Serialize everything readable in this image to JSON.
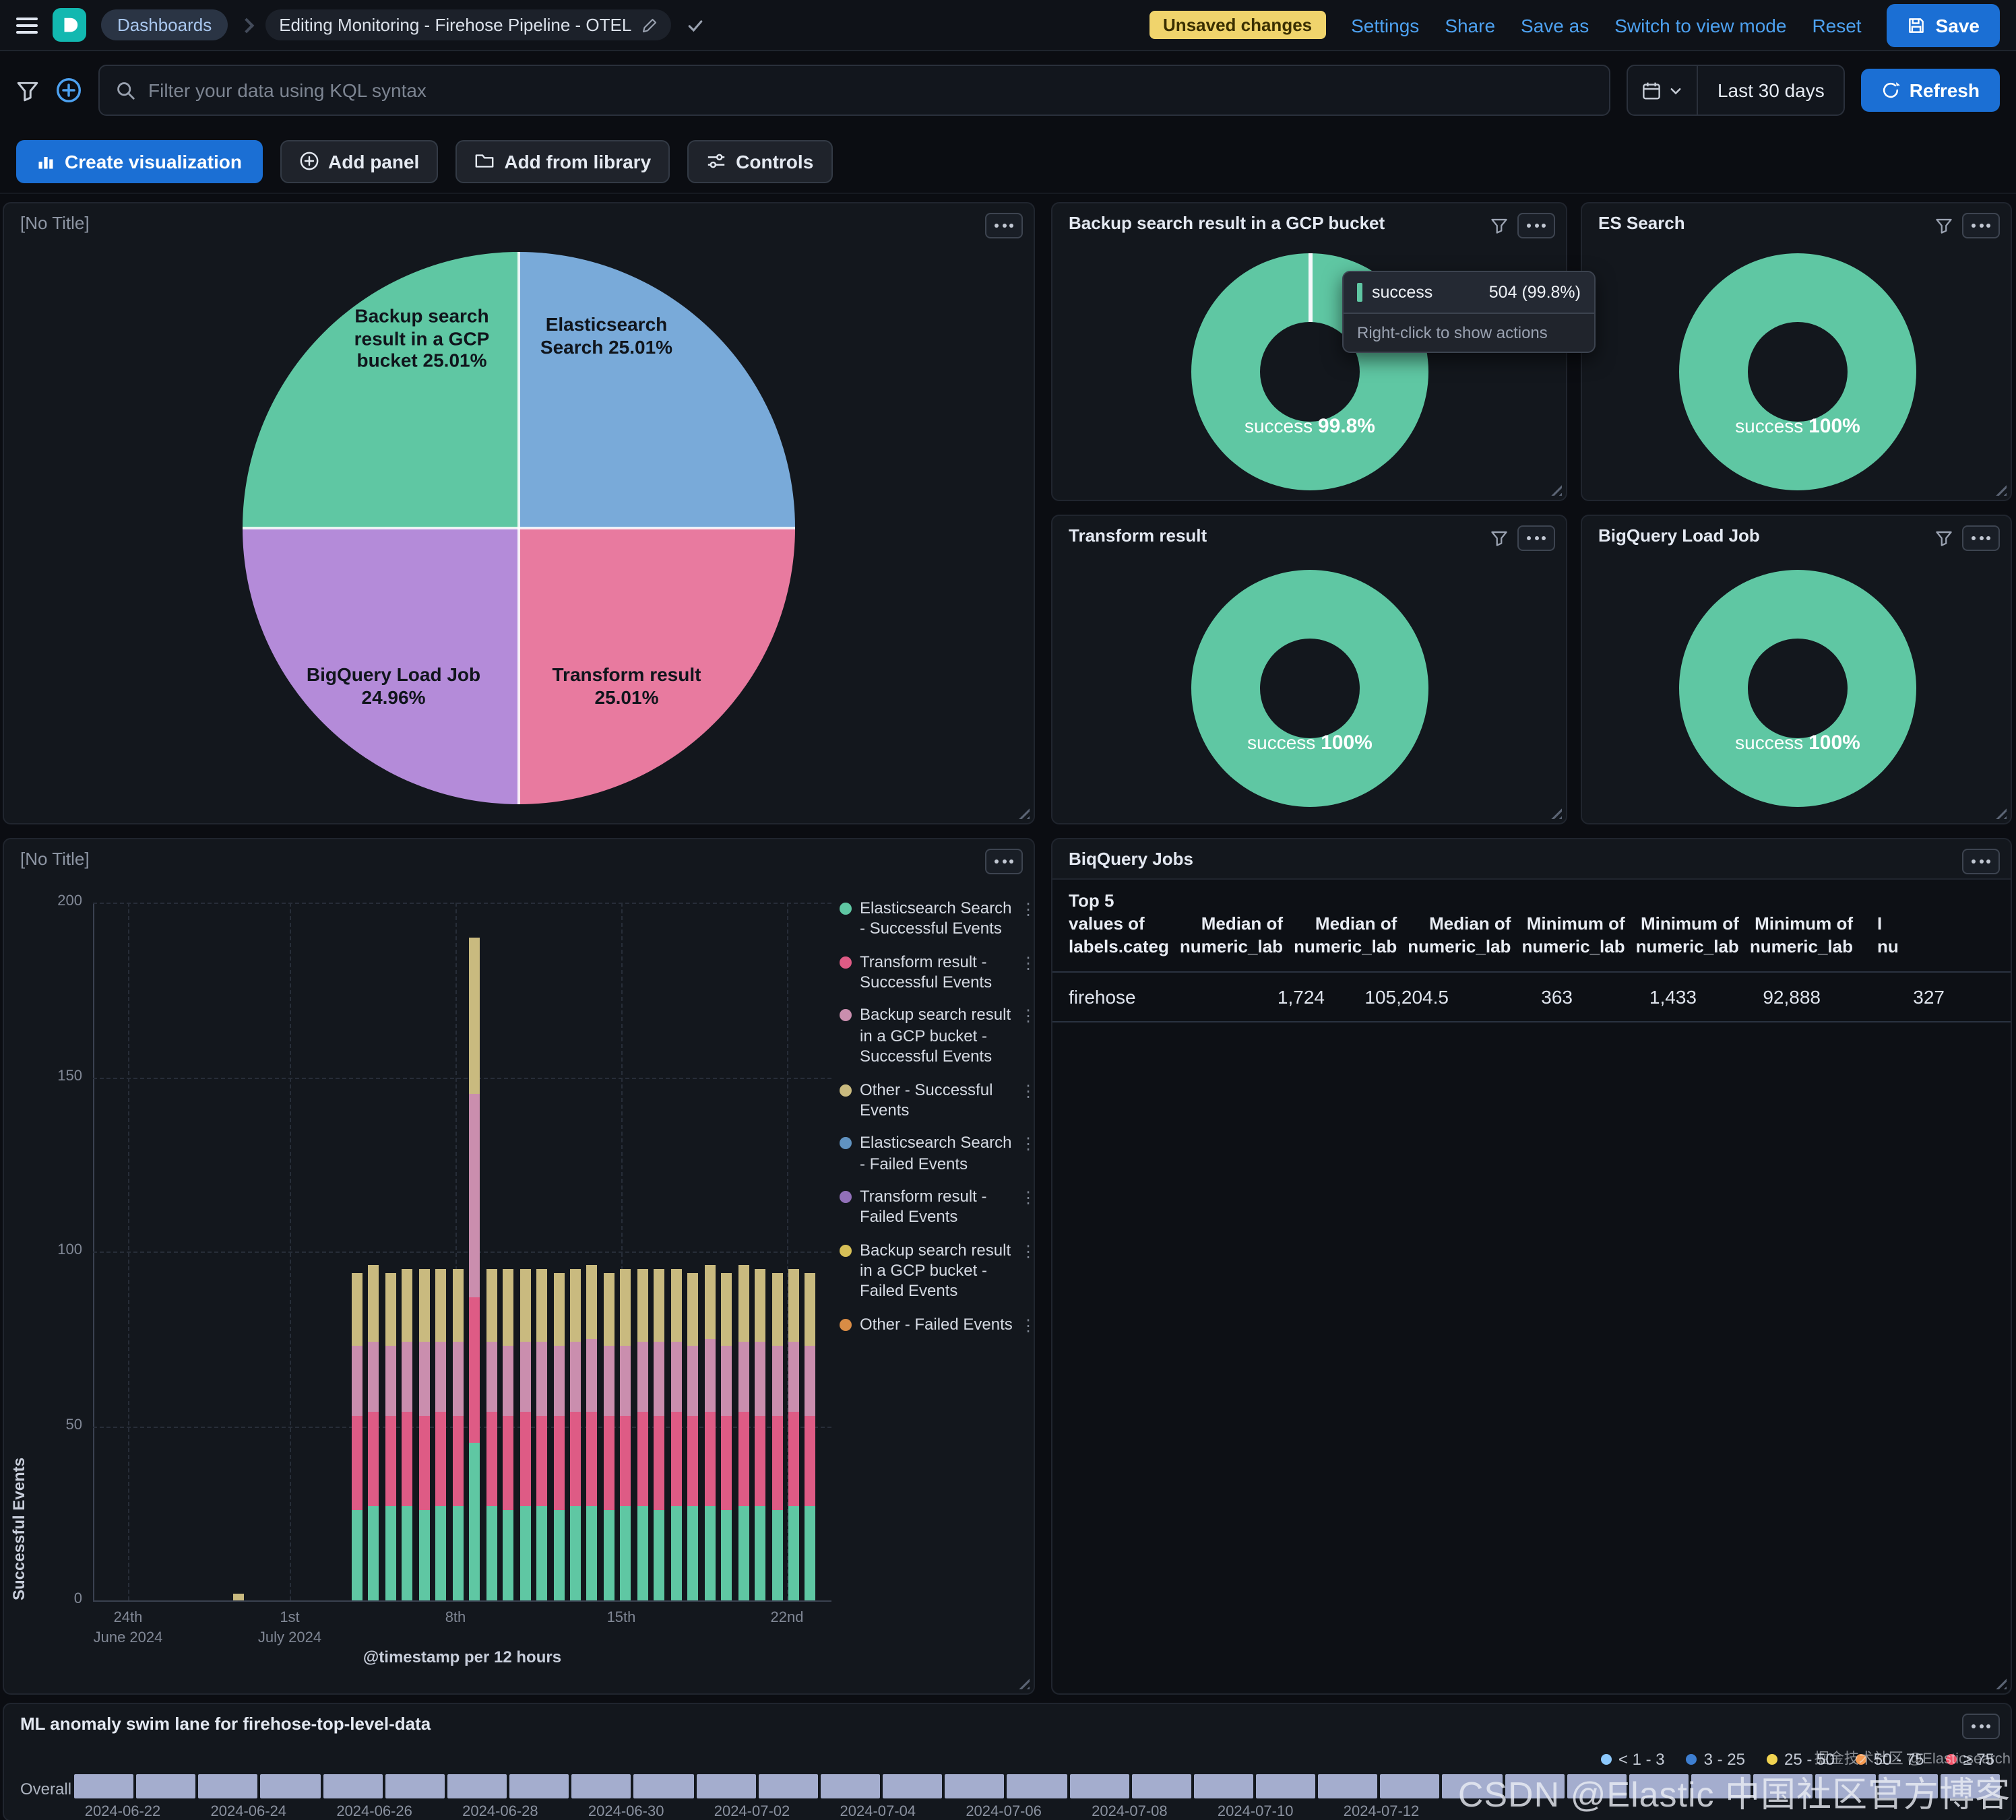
{
  "colors": {
    "accent": "#4DA1F0",
    "primary_button": "#1B6FD4",
    "badge": "#F0D46C",
    "panel_bg": "#13171D",
    "success": "#5FC7A3"
  },
  "header": {
    "breadcrumbs": [
      "Dashboards",
      "Editing Monitoring - Firehose Pipeline - OTEL"
    ],
    "unsaved_badge": "Unsaved changes",
    "links": [
      "Settings",
      "Share",
      "Save as",
      "Switch to view mode",
      "Reset"
    ],
    "save": "Save"
  },
  "filter_bar": {
    "kql_placeholder": "Filter your data using KQL syntax",
    "time_range": "Last 30 days",
    "refresh": "Refresh"
  },
  "edit_bar": {
    "create_visualization": "Create visualization",
    "add_panel": "Add panel",
    "add_from_library": "Add from library",
    "controls": "Controls"
  },
  "watermarks": {
    "small": "掘金技术社区 @Elasticsearch",
    "large": "CSDN @Elastic 中国社区官方博客"
  },
  "chart_data": [
    {
      "id": "status-pie",
      "type": "pie",
      "title": "[No Title]",
      "slices": [
        {
          "label": "Elasticsearch Search",
          "value": 25.01,
          "pct": "25.01%",
          "color": "#79AAD9"
        },
        {
          "label": "Transform result",
          "value": 25.01,
          "pct": "25.01%",
          "color": "#E87A9F"
        },
        {
          "label": "BigQuery Load Job",
          "value": 24.96,
          "pct": "24.96%",
          "color": "#B48BD9"
        },
        {
          "label": "Backup search result in a GCP bucket",
          "value": 25.01,
          "pct": "25.01%",
          "color": "#5FC7A3"
        }
      ]
    },
    {
      "id": "backup-donut",
      "type": "pie",
      "donut": true,
      "title": "Backup search result in a GCP bucket",
      "center": {
        "label": "success",
        "pct": "99.8%"
      },
      "slices": [
        {
          "label": "success",
          "value": 99.8,
          "color": "#5FC7A3"
        }
      ],
      "tooltip": {
        "label": "success",
        "value": "504 (99.8%)",
        "hint": "Right-click to show actions"
      }
    },
    {
      "id": "es-donut",
      "type": "pie",
      "donut": true,
      "title": "ES Search",
      "center": {
        "label": "success",
        "pct": "100%"
      },
      "slices": [
        {
          "label": "success",
          "value": 100,
          "color": "#5FC7A3"
        }
      ]
    },
    {
      "id": "transform-donut",
      "type": "pie",
      "donut": true,
      "title": "Transform result",
      "center": {
        "label": "success",
        "pct": "100%"
      },
      "slices": [
        {
          "label": "success",
          "value": 100,
          "color": "#5FC7A3"
        }
      ]
    },
    {
      "id": "bigquery-donut",
      "type": "pie",
      "donut": true,
      "title": "BigQuery Load Job",
      "center": {
        "label": "success",
        "pct": "100%"
      },
      "slices": [
        {
          "label": "success",
          "value": 100,
          "color": "#5FC7A3"
        }
      ]
    },
    {
      "id": "events-bar",
      "type": "bar",
      "stacked": true,
      "title": "[No Title]",
      "ylabel": "Successful Events",
      "xlabel": "@timestamp per 12 hours",
      "ylim": [
        0,
        200
      ],
      "yticks": [
        0,
        50,
        100,
        150,
        200
      ],
      "xticks": [
        {
          "x": 92,
          "label": "24th",
          "sub": "June 2024"
        },
        {
          "x": 212,
          "label": "1st",
          "sub": "July 2024"
        },
        {
          "x": 335,
          "label": "8th"
        },
        {
          "x": 458,
          "label": "15th"
        },
        {
          "x": 581,
          "label": "22nd"
        }
      ],
      "series": [
        {
          "name": "Elasticsearch Search - Successful Events",
          "color": "#5FC7A3"
        },
        {
          "name": "Transform result - Successful Events",
          "color": "#DE5B85"
        },
        {
          "name": "Backup search result in a GCP bucket - Successful Events",
          "color": "#CA8EAE"
        },
        {
          "name": "Other - Successful Events",
          "color": "#C9BA7F"
        },
        {
          "name": "Elasticsearch Search - Failed Events",
          "color": "#6092C0"
        },
        {
          "name": "Transform result - Failed Events",
          "color": "#9170B8"
        },
        {
          "name": "Backup search result in a GCP bucket - Failed Events",
          "color": "#D6BF57"
        },
        {
          "name": "Other - Failed Events",
          "color": "#D98C45"
        }
      ],
      "bars": [
        {
          "x": 170,
          "v": [
            0,
            0,
            0,
            2
          ]
        },
        {
          "x": 258,
          "v": [
            26,
            27,
            20,
            21
          ]
        },
        {
          "x": 270,
          "v": [
            27,
            27,
            20,
            22
          ]
        },
        {
          "x": 283,
          "v": [
            27,
            26,
            20,
            21
          ]
        },
        {
          "x": 295,
          "v": [
            27,
            27,
            20,
            21
          ]
        },
        {
          "x": 308,
          "v": [
            26,
            27,
            21,
            21
          ]
        },
        {
          "x": 320,
          "v": [
            27,
            27,
            20,
            21
          ]
        },
        {
          "x": 333,
          "v": [
            27,
            26,
            21,
            21
          ]
        },
        {
          "x": 345,
          "v": [
            45,
            42,
            58,
            45
          ]
        },
        {
          "x": 358,
          "v": [
            27,
            27,
            20,
            21
          ]
        },
        {
          "x": 370,
          "v": [
            26,
            27,
            20,
            22
          ]
        },
        {
          "x": 383,
          "v": [
            27,
            27,
            20,
            21
          ]
        },
        {
          "x": 395,
          "v": [
            27,
            26,
            21,
            21
          ]
        },
        {
          "x": 408,
          "v": [
            26,
            27,
            20,
            21
          ]
        },
        {
          "x": 420,
          "v": [
            27,
            27,
            20,
            21
          ]
        },
        {
          "x": 432,
          "v": [
            27,
            27,
            21,
            21
          ]
        },
        {
          "x": 445,
          "v": [
            26,
            27,
            20,
            21
          ]
        },
        {
          "x": 457,
          "v": [
            27,
            26,
            20,
            22
          ]
        },
        {
          "x": 470,
          "v": [
            27,
            27,
            20,
            21
          ]
        },
        {
          "x": 482,
          "v": [
            26,
            27,
            21,
            21
          ]
        },
        {
          "x": 495,
          "v": [
            27,
            27,
            20,
            21
          ]
        },
        {
          "x": 507,
          "v": [
            27,
            26,
            20,
            21
          ]
        },
        {
          "x": 520,
          "v": [
            27,
            27,
            21,
            21
          ]
        },
        {
          "x": 532,
          "v": [
            26,
            27,
            20,
            21
          ]
        },
        {
          "x": 545,
          "v": [
            27,
            27,
            20,
            22
          ]
        },
        {
          "x": 557,
          "v": [
            27,
            26,
            21,
            21
          ]
        },
        {
          "x": 570,
          "v": [
            26,
            27,
            20,
            21
          ]
        },
        {
          "x": 582,
          "v": [
            27,
            27,
            20,
            21
          ]
        },
        {
          "x": 594,
          "v": [
            27,
            26,
            20,
            21
          ]
        }
      ]
    },
    {
      "id": "bigquery-jobs-table",
      "type": "table",
      "title": "BiqQuery Jobs",
      "columns": [
        "Top 5 values of labels.categ",
        "Median of numeric_lab",
        "Median of numeric_lab",
        "Median of numeric_lab",
        "Minimum of numeric_lab",
        "Minimum of numeric_lab",
        "Minimum of numeric_lab"
      ],
      "clipped_column": "I\nnu",
      "rows": [
        [
          "firehose",
          "1,724",
          "105,204.5",
          "363",
          "1,433",
          "92,888",
          "327"
        ]
      ]
    },
    {
      "id": "ml-swimlane",
      "type": "heatmap",
      "title": "ML anomaly swim lane for firehose-top-level-data",
      "lanes": [
        "Overall"
      ],
      "cell_count": 31,
      "cell_color": "#A4ADCE",
      "legend": [
        {
          "label": "< 1 - 3",
          "color": "#8CC8FC"
        },
        {
          "label": "3 - 25",
          "color": "#3E7FD1"
        },
        {
          "label": "25 - 50",
          "color": "#F0D351"
        },
        {
          "label": "50 - 75",
          "color": "#F59B52"
        },
        {
          "label": "≥ 75",
          "color": "#F4556A"
        }
      ],
      "x_labels": [
        "2024-06-22",
        "2024-06-24",
        "2024-06-26",
        "2024-06-28",
        "2024-06-30",
        "2024-07-02",
        "2024-07-04",
        "2024-07-06",
        "2024-07-08",
        "2024-07-10",
        "2024-07-12"
      ]
    }
  ]
}
